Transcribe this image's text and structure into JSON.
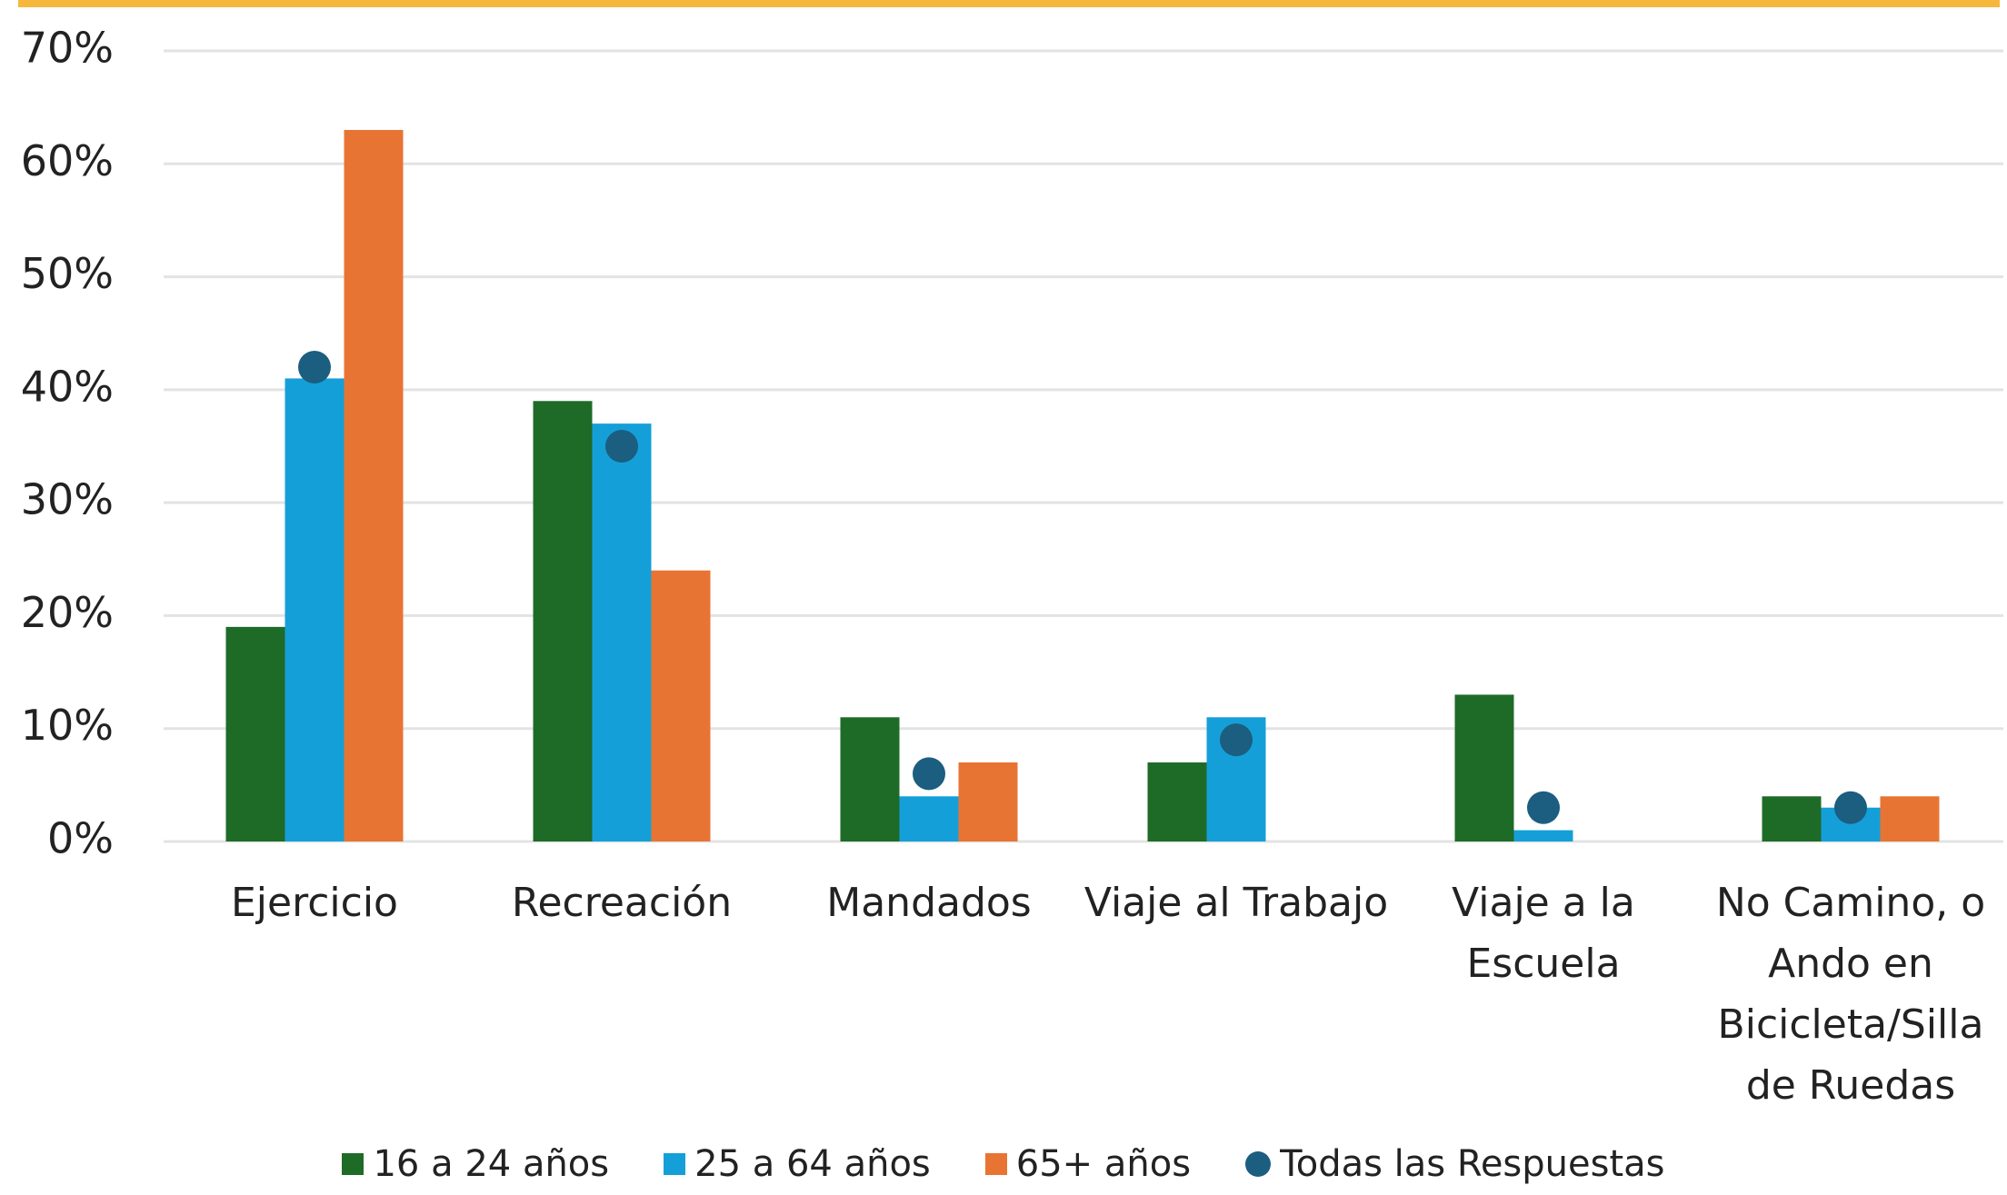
{
  "chart_data": {
    "type": "bar",
    "categories": [
      "Ejercicio",
      "Recreación",
      "Mandados",
      "Viaje al Trabajo",
      "Viaje a la Escuela",
      "No Camino, o Ando en Bicicleta/Silla de Ruedas"
    ],
    "series": [
      {
        "name": "16 a 24 años",
        "color": "#1e6b28",
        "values": [
          19,
          39,
          11,
          7,
          13,
          4
        ]
      },
      {
        "name": "25 a 64 años",
        "color": "#159fd8",
        "values": [
          41,
          37,
          4,
          11,
          1,
          3
        ]
      },
      {
        "name": "65+ años",
        "color": "#e87434",
        "values": [
          63,
          24,
          7,
          0,
          0,
          4
        ]
      },
      {
        "name": "Todas las Respuestas",
        "color": "#1b5e80",
        "type": "scatter",
        "values": [
          42,
          35,
          6,
          9,
          3,
          3
        ]
      }
    ],
    "ylim": [
      0,
      70
    ],
    "yticks": [
      {
        "value": 0,
        "label": "0%"
      },
      {
        "value": 10,
        "label": "10%"
      },
      {
        "value": 20,
        "label": "20%"
      },
      {
        "value": 30,
        "label": "30%"
      },
      {
        "value": 40,
        "label": "40%"
      },
      {
        "value": 50,
        "label": "50%"
      },
      {
        "value": 60,
        "label": "60%"
      },
      {
        "value": 70,
        "label": "70%"
      }
    ],
    "grid": true,
    "legend": "bottom"
  }
}
